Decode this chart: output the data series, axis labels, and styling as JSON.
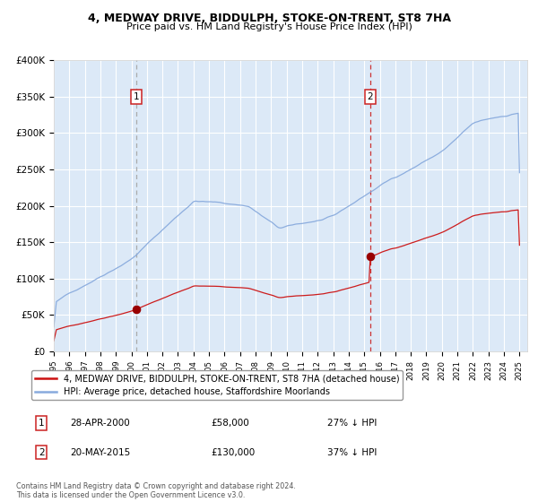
{
  "title": "4, MEDWAY DRIVE, BIDDULPH, STOKE-ON-TRENT, ST8 7HA",
  "subtitle": "Price paid vs. HM Land Registry's House Price Index (HPI)",
  "background_color": "#dce9f7",
  "hpi_color": "#88aadd",
  "price_color": "#cc1111",
  "marker_color": "#990000",
  "vline1_color": "#aaaaaa",
  "vline2_color": "#cc3333",
  "sale1_date_num": 2000.32,
  "sale1_price": 58000,
  "sale2_date_num": 2015.38,
  "sale2_price": 130000,
  "ylim": [
    0,
    400000
  ],
  "xlim_start": 1995.0,
  "xlim_end": 2025.5,
  "yticks": [
    0,
    50000,
    100000,
    150000,
    200000,
    250000,
    300000,
    350000,
    400000
  ],
  "ytick_labels": [
    "£0",
    "£50K",
    "£100K",
    "£150K",
    "£200K",
    "£250K",
    "£300K",
    "£350K",
    "£400K"
  ],
  "legend_entries": [
    "4, MEDWAY DRIVE, BIDDULPH, STOKE-ON-TRENT, ST8 7HA (detached house)",
    "HPI: Average price, detached house, Staffordshire Moorlands"
  ],
  "annotation1_label": "1",
  "annotation1_date": "28-APR-2000",
  "annotation1_price": "£58,000",
  "annotation1_hpi": "27% ↓ HPI",
  "annotation2_label": "2",
  "annotation2_date": "20-MAY-2015",
  "annotation2_price": "£130,000",
  "annotation2_hpi": "37% ↓ HPI",
  "footnote": "Contains HM Land Registry data © Crown copyright and database right 2024.\nThis data is licensed under the Open Government Licence v3.0."
}
